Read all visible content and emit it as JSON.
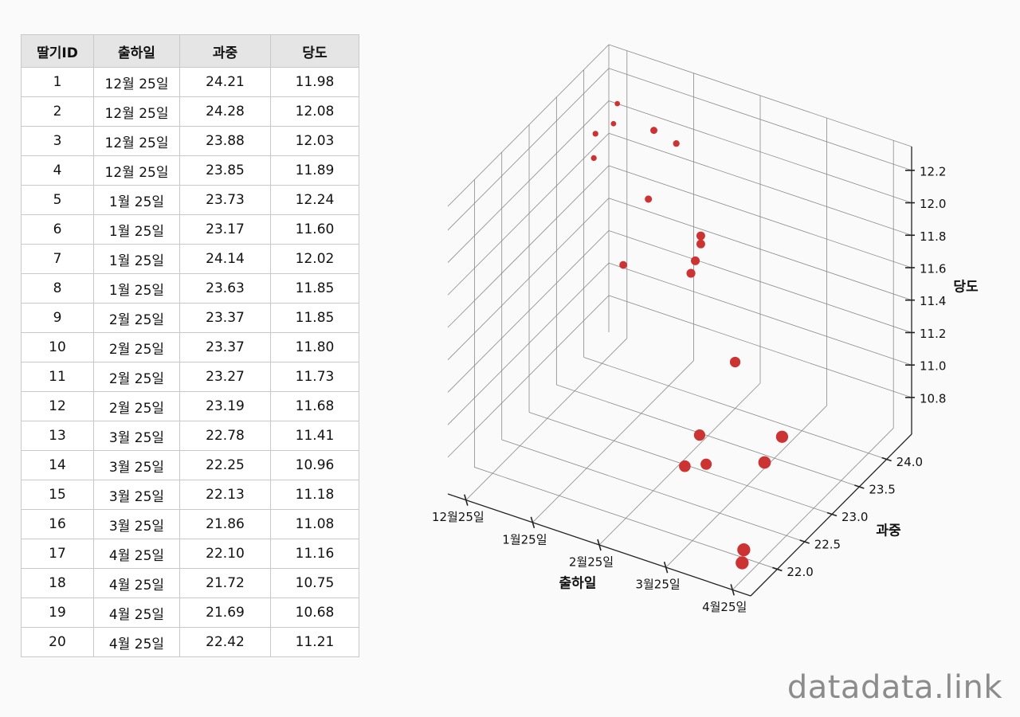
{
  "table": {
    "headers": [
      "딸기ID",
      "출하일",
      "과중",
      "당도"
    ],
    "rows": [
      [
        "1",
        "12월 25일",
        "24.21",
        "11.98"
      ],
      [
        "2",
        "12월 25일",
        "24.28",
        "12.08"
      ],
      [
        "3",
        "12월 25일",
        "23.88",
        "12.03"
      ],
      [
        "4",
        "12월 25일",
        "23.85",
        "11.89"
      ],
      [
        "5",
        "1월 25일",
        "23.73",
        "12.24"
      ],
      [
        "6",
        "1월 25일",
        "23.17",
        "11.60"
      ],
      [
        "7",
        "1월 25일",
        "24.14",
        "12.02"
      ],
      [
        "8",
        "1월 25일",
        "23.63",
        "11.85"
      ],
      [
        "9",
        "2월 25일",
        "23.37",
        "11.85"
      ],
      [
        "10",
        "2월 25일",
        "23.37",
        "11.80"
      ],
      [
        "11",
        "2월 25일",
        "23.27",
        "11.73"
      ],
      [
        "12",
        "2월 25일",
        "23.19",
        "11.68"
      ],
      [
        "13",
        "3월 25일",
        "22.78",
        "11.41"
      ],
      [
        "14",
        "3월 25일",
        "22.25",
        "10.96"
      ],
      [
        "15",
        "3월 25일",
        "22.13",
        "11.18"
      ],
      [
        "16",
        "3월 25일",
        "21.86",
        "11.08"
      ],
      [
        "17",
        "4월 25일",
        "22.10",
        "11.16"
      ],
      [
        "18",
        "4월 25일",
        "21.72",
        "10.75"
      ],
      [
        "19",
        "4월 25일",
        "21.69",
        "10.68"
      ],
      [
        "20",
        "4월 25일",
        "22.42",
        "11.21"
      ]
    ]
  },
  "chart_data": {
    "type": "scatter",
    "projection": "3d",
    "x_label": "출하일",
    "y_label": "과중",
    "z_label": "당도",
    "x_ticks": [
      "12월25일",
      "1월25일",
      "2월25일",
      "3월25일",
      "4월25일"
    ],
    "y_ticks": [
      "22.0",
      "22.5",
      "23.0",
      "23.5",
      "24.0"
    ],
    "z_ticks": [
      "10.8",
      "11.0",
      "11.2",
      "11.4",
      "11.6",
      "11.8",
      "12.0",
      "12.2"
    ],
    "y_range": [
      21.69,
      24.28
    ],
    "z_range": [
      10.68,
      12.24
    ],
    "marker_color": "#cc3333",
    "points": [
      {
        "x": "12월25일",
        "y": 24.21,
        "z": 11.98
      },
      {
        "x": "12월25일",
        "y": 24.28,
        "z": 12.08
      },
      {
        "x": "12월25일",
        "y": 23.88,
        "z": 12.03
      },
      {
        "x": "12월25일",
        "y": 23.85,
        "z": 11.89
      },
      {
        "x": "1월25일",
        "y": 23.73,
        "z": 12.24
      },
      {
        "x": "1월25일",
        "y": 23.17,
        "z": 11.6
      },
      {
        "x": "1월25일",
        "y": 24.14,
        "z": 12.02
      },
      {
        "x": "1월25일",
        "y": 23.63,
        "z": 11.85
      },
      {
        "x": "2월25일",
        "y": 23.37,
        "z": 11.85
      },
      {
        "x": "2월25일",
        "y": 23.37,
        "z": 11.8
      },
      {
        "x": "2월25일",
        "y": 23.27,
        "z": 11.73
      },
      {
        "x": "2월25일",
        "y": 23.19,
        "z": 11.68
      },
      {
        "x": "3월25일",
        "y": 22.78,
        "z": 11.41
      },
      {
        "x": "3월25일",
        "y": 22.25,
        "z": 10.96
      },
      {
        "x": "3월25일",
        "y": 22.13,
        "z": 11.18
      },
      {
        "x": "3월25일",
        "y": 21.86,
        "z": 11.08
      },
      {
        "x": "4월25일",
        "y": 22.1,
        "z": 11.16
      },
      {
        "x": "4월25일",
        "y": 21.72,
        "z": 10.75
      },
      {
        "x": "4월25일",
        "y": 21.69,
        "z": 10.68
      },
      {
        "x": "4월25일",
        "y": 22.42,
        "z": 11.21
      }
    ]
  },
  "watermark": "datadata.link"
}
